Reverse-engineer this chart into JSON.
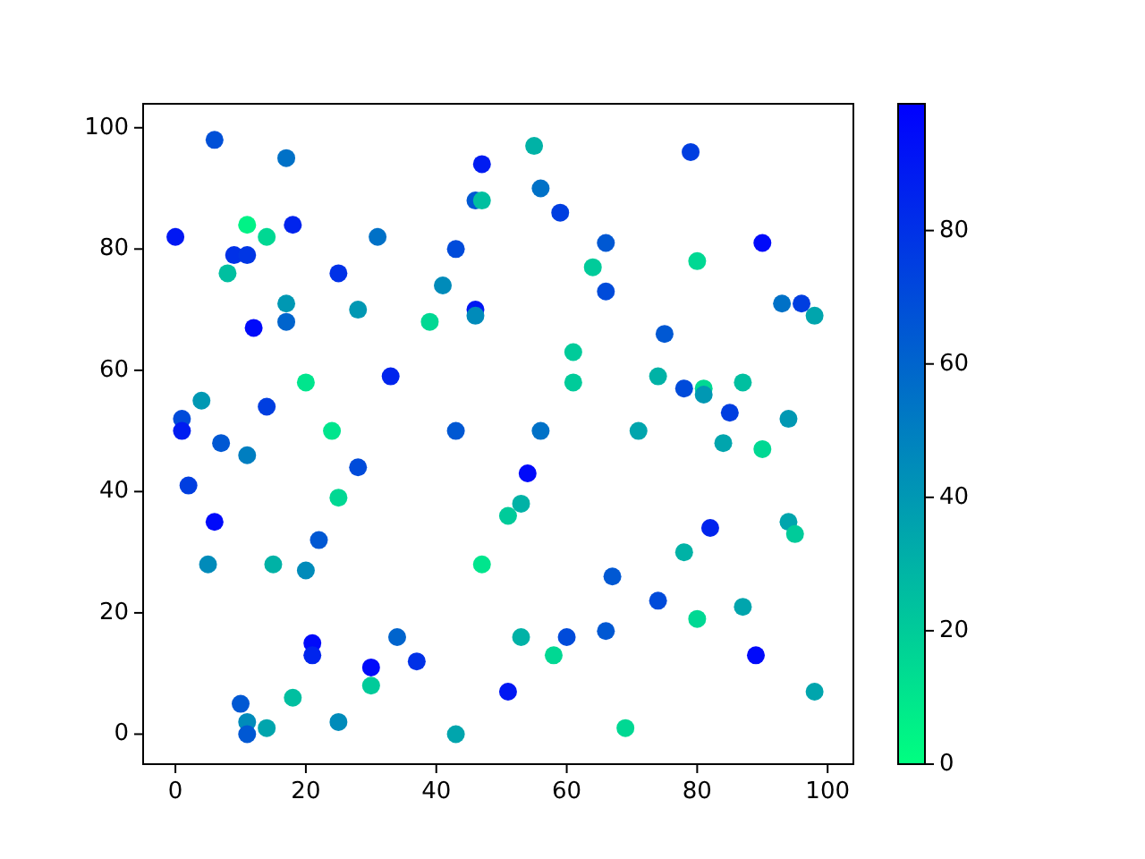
{
  "chart_data": {
    "type": "scatter",
    "marker": "circle",
    "xlim": [
      -4.95,
      103.95
    ],
    "ylim": [
      -4.95,
      103.95
    ],
    "xticks": [
      0,
      20,
      40,
      60,
      80,
      100
    ],
    "yticks": [
      0,
      20,
      40,
      60,
      80,
      100
    ],
    "clim": [
      0,
      99
    ],
    "cticks": [
      0,
      20,
      40,
      60,
      80
    ],
    "series": [
      {
        "x": [
          6,
          17,
          47,
          46,
          47,
          11,
          14,
          0,
          18,
          31,
          9,
          11,
          43,
          8,
          25,
          41,
          17,
          17,
          28,
          39,
          46,
          46,
          12,
          20,
          33,
          4,
          14,
          1,
          1,
          24,
          43,
          7,
          55,
          79,
          56,
          59,
          66,
          90,
          64,
          80,
          66,
          93,
          96,
          98,
          75,
          61,
          61,
          74,
          78,
          81,
          81,
          87,
          85,
          94,
          56,
          71,
          84,
          90,
          54,
          53,
          51,
          82,
          94,
          95,
          78,
          67,
          74,
          80,
          87,
          53,
          60,
          66,
          58,
          89,
          51,
          98,
          69,
          47,
          11,
          28,
          2,
          25,
          6,
          22,
          5,
          15,
          20,
          21,
          21,
          34,
          37,
          30,
          30,
          18,
          10,
          11,
          11,
          14,
          25,
          43
        ],
        "values": [
          98,
          95,
          94,
          88,
          88,
          84,
          82,
          82,
          84,
          82,
          79,
          79,
          80,
          76,
          76,
          74,
          71,
          68,
          70,
          68,
          70,
          69,
          67,
          58,
          59,
          55,
          54,
          52,
          50,
          50,
          50,
          48,
          97,
          96,
          90,
          86,
          81,
          81,
          77,
          78,
          73,
          71,
          71,
          69,
          66,
          63,
          58,
          59,
          57,
          57,
          56,
          58,
          53,
          52,
          50,
          50,
          48,
          47,
          43,
          38,
          36,
          34,
          35,
          33,
          30,
          26,
          22,
          19,
          21,
          16,
          16,
          17,
          13,
          13,
          7,
          7,
          1,
          28,
          46,
          44,
          41,
          39,
          35,
          32,
          28,
          28,
          27,
          15,
          13,
          16,
          12,
          11,
          8,
          6,
          5,
          2,
          0,
          1,
          2,
          0
        ],
        "cvalues": [
          68,
          55,
          88,
          65,
          25,
          5,
          15,
          90,
          85,
          55,
          80,
          78,
          70,
          25,
          80,
          45,
          40,
          60,
          40,
          15,
          90,
          45,
          95,
          10,
          85,
          40,
          75,
          70,
          88,
          10,
          65,
          65,
          30,
          75,
          55,
          75,
          65,
          95,
          20,
          15,
          70,
          55,
          75,
          35,
          65,
          20,
          20,
          30,
          70,
          15,
          40,
          25,
          75,
          40,
          55,
          35,
          35,
          15,
          95,
          30,
          20,
          85,
          35,
          20,
          30,
          65,
          70,
          15,
          35,
          30,
          70,
          65,
          15,
          95,
          90,
          35,
          15,
          10,
          50,
          70,
          75,
          15,
          95,
          65,
          45,
          30,
          45,
          95,
          85,
          60,
          80,
          95,
          20,
          25,
          65,
          45,
          65,
          35,
          45,
          35
        ]
      }
    ]
  }
}
